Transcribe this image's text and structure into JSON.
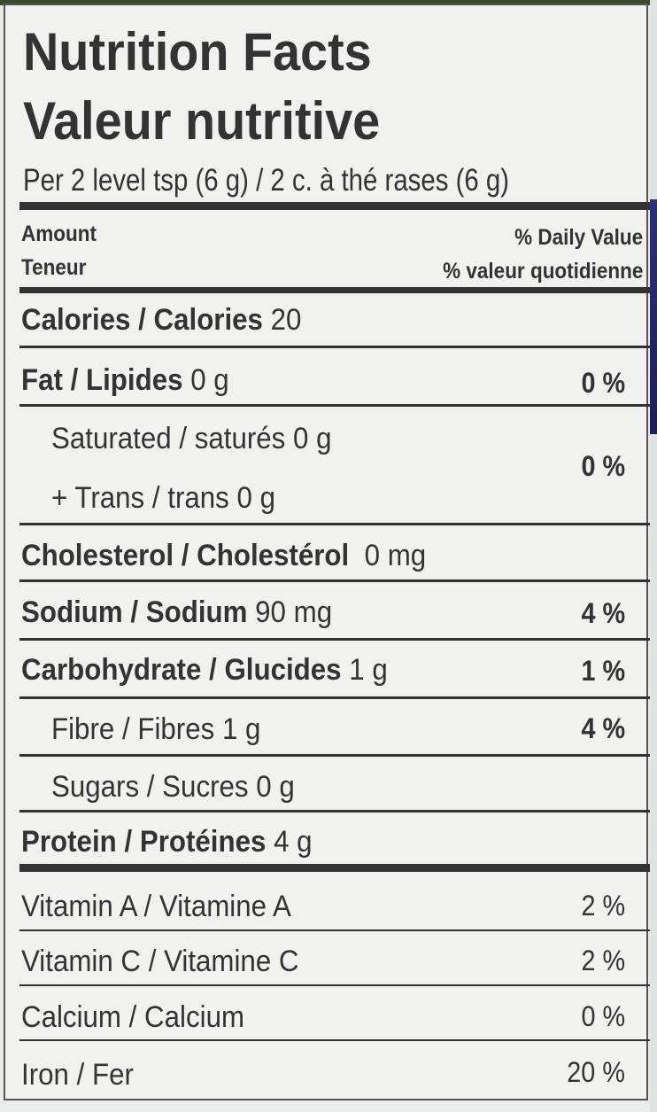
{
  "title_en": "Nutrition Facts",
  "title_fr": "Valeur nutritive",
  "serving": "Per 2 level tsp (6 g) / 2 c. à thé rases (6 g)",
  "header": {
    "amount_en": "Amount",
    "amount_fr": "Teneur",
    "dv_en": "% Daily Value",
    "dv_fr": "% valeur quotidienne"
  },
  "nutrients": [
    {
      "label": "Calories / Calories",
      "amount": "20",
      "dv": ""
    },
    {
      "label": "Fat / Lipides",
      "amount": "0 g",
      "dv": "0 %"
    },
    {
      "label": "Saturated / saturés",
      "amount": "0 g",
      "dv": "0 %"
    },
    {
      "label": "+ Trans / trans",
      "amount": "0 g",
      "dv": ""
    },
    {
      "label": "Cholesterol / Cholestérol",
      "amount": "0 mg",
      "dv": ""
    },
    {
      "label": "Sodium / Sodium",
      "amount": "90 mg",
      "dv": "4 %"
    },
    {
      "label": "Carbohydrate / Glucides",
      "amount": "1 g",
      "dv": "1 %"
    },
    {
      "label": "Fibre / Fibres",
      "amount": "1 g",
      "dv": "4 %"
    },
    {
      "label": "Sugars / Sucres",
      "amount": "0 g",
      "dv": ""
    },
    {
      "label": "Protein / Protéines",
      "amount": "4 g",
      "dv": ""
    }
  ],
  "vitamins": [
    {
      "label": "Vitamin A / Vitamine A",
      "dv": "2 %"
    },
    {
      "label": "Vitamin C / Vitamine C",
      "dv": "2 %"
    },
    {
      "label": "Calcium / Calcium",
      "dv": "0 %"
    },
    {
      "label": "Iron / Fer",
      "dv": "20 %"
    }
  ]
}
